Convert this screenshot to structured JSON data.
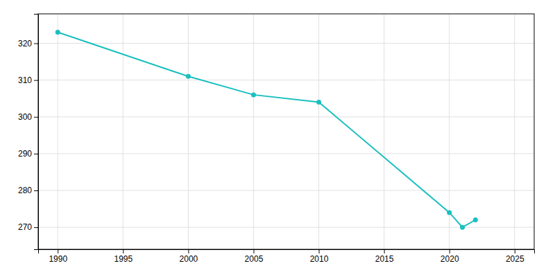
{
  "chart_data": {
    "type": "line",
    "x": [
      1990,
      2000,
      2005,
      2010,
      2020,
      2021,
      2022
    ],
    "values": [
      323,
      311,
      306,
      304,
      274,
      270,
      272
    ],
    "color": "#1abfbf",
    "marker": "circle",
    "xlim": [
      1988.5,
      2026.5
    ],
    "ylim": [
      264,
      328
    ],
    "xticks": [
      1990,
      1995,
      2000,
      2005,
      2010,
      2015,
      2020,
      2025
    ],
    "yticks": [
      270,
      280,
      290,
      300,
      310,
      320
    ],
    "grid": true
  }
}
